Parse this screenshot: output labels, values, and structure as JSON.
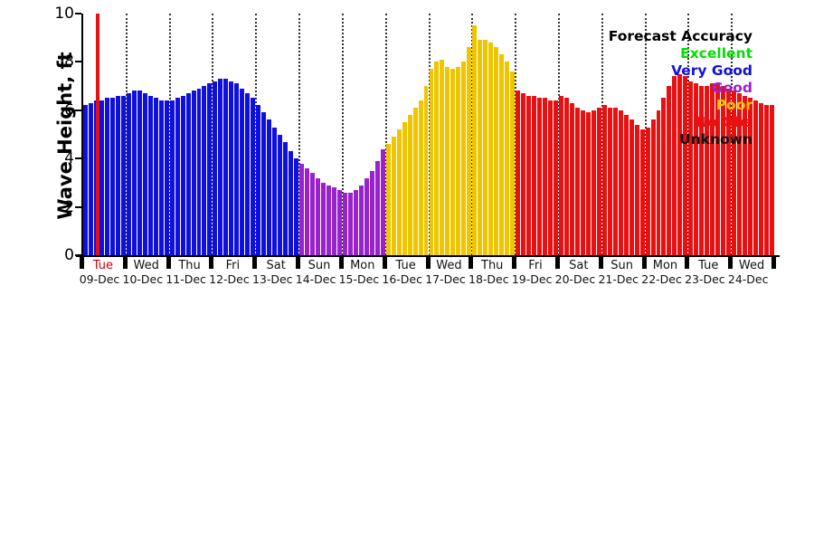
{
  "legend": {
    "title": "Forecast Accuracy",
    "entries": [
      {
        "key": "excellent",
        "label": "Excellent",
        "color": "#00dd00"
      },
      {
        "key": "very_good",
        "label": "Very Good",
        "color": "#1010dd"
      },
      {
        "key": "good",
        "label": "Good",
        "color": "#9922cc"
      },
      {
        "key": "poor",
        "label": "Poor",
        "color": "#edc500"
      },
      {
        "key": "no_obs",
        "label": "No Obs",
        "color": "#e81010"
      },
      {
        "key": "unknown",
        "label": "Unknown",
        "color": "#101010"
      }
    ]
  },
  "chart_data": {
    "type": "bar",
    "title": "",
    "xlabel": "",
    "ylabel": "Wave Height, ft",
    "ylim": [
      0,
      10
    ],
    "yticks": [
      0,
      2,
      4,
      6,
      8,
      10
    ],
    "grid": "vertical-dotted-day-boundaries",
    "legend_position": "top-right-inside",
    "points_per_day": 8,
    "days": [
      {
        "name": "Tue",
        "date": "09-Dec",
        "name_color": "#cc0000"
      },
      {
        "name": "Wed",
        "date": "10-Dec"
      },
      {
        "name": "Thu",
        "date": "11-Dec"
      },
      {
        "name": "Fri",
        "date": "12-Dec"
      },
      {
        "name": "Sat",
        "date": "13-Dec"
      },
      {
        "name": "Sun",
        "date": "14-Dec"
      },
      {
        "name": "Mon",
        "date": "15-Dec"
      },
      {
        "name": "Tue",
        "date": "16-Dec"
      },
      {
        "name": "Wed",
        "date": "17-Dec"
      },
      {
        "name": "Thu",
        "date": "18-Dec"
      },
      {
        "name": "Fri",
        "date": "19-Dec"
      },
      {
        "name": "Sat",
        "date": "20-Dec"
      },
      {
        "name": "Sun",
        "date": "21-Dec"
      },
      {
        "name": "Mon",
        "date": "22-Dec"
      },
      {
        "name": "Tue",
        "date": "23-Dec"
      },
      {
        "name": "Wed",
        "date": "24-Dec"
      }
    ],
    "day_categories": [
      "very_good",
      "very_good",
      "very_good",
      "very_good",
      "very_good",
      "good",
      "good",
      "poor",
      "poor",
      "poor",
      "no_obs",
      "no_obs",
      "no_obs",
      "no_obs",
      "no_obs",
      "no_obs"
    ],
    "values": [
      6.2,
      6.3,
      6.4,
      6.4,
      6.5,
      6.5,
      6.6,
      6.6,
      6.7,
      6.8,
      6.8,
      6.7,
      6.6,
      6.5,
      6.4,
      6.4,
      6.4,
      6.5,
      6.6,
      6.7,
      6.8,
      6.9,
      7.0,
      7.1,
      7.2,
      7.3,
      7.3,
      7.2,
      7.1,
      6.9,
      6.7,
      6.5,
      6.2,
      5.9,
      5.6,
      5.3,
      5.0,
      4.7,
      4.3,
      4.0,
      3.8,
      3.6,
      3.4,
      3.2,
      3.0,
      2.9,
      2.8,
      2.7,
      2.6,
      2.6,
      2.7,
      2.9,
      3.2,
      3.5,
      3.9,
      4.4,
      4.6,
      4.9,
      5.2,
      5.5,
      5.8,
      6.1,
      6.4,
      7.0,
      7.7,
      8.0,
      8.1,
      7.8,
      7.7,
      7.8,
      8.0,
      8.6,
      9.5,
      8.9,
      8.9,
      8.8,
      8.6,
      8.3,
      8.0,
      7.6,
      6.8,
      6.7,
      6.6,
      6.6,
      6.5,
      6.5,
      6.4,
      6.4,
      6.6,
      6.5,
      6.3,
      6.1,
      6.0,
      5.9,
      6.0,
      6.1,
      6.2,
      6.1,
      6.1,
      6.0,
      5.8,
      5.6,
      5.4,
      5.2,
      5.3,
      5.6,
      6.0,
      6.5,
      7.0,
      7.4,
      7.5,
      7.4,
      7.2,
      7.1,
      7.0,
      7.0,
      7.1,
      7.1,
      7.0,
      6.9,
      6.8,
      6.7,
      6.6,
      6.5,
      6.4,
      6.3,
      6.2,
      6.2
    ],
    "now_marker": {
      "day": 0,
      "frac": 0.33,
      "color": "#e81010"
    }
  }
}
